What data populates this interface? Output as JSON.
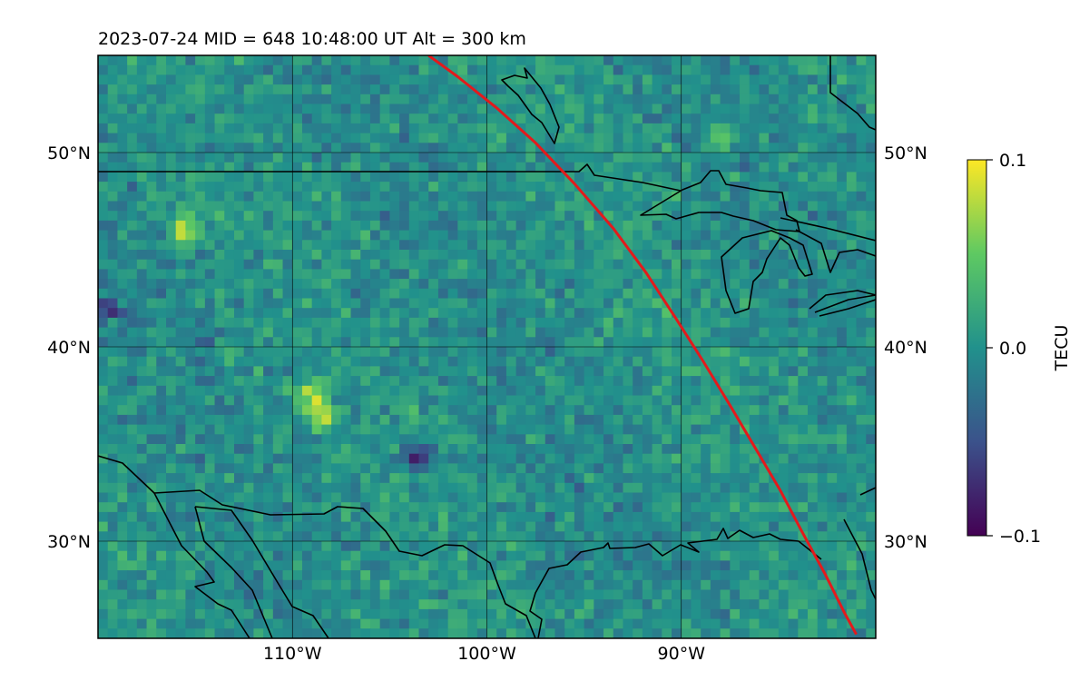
{
  "chart_data": {
    "type": "heatmap",
    "title": "2023-07-24  MID = 648    10:48:00  UT  Alt = 300 km",
    "projection": "plate-carree",
    "extent": {
      "lon": [
        -120,
        -80
      ],
      "lat": [
        25,
        55
      ]
    },
    "x_ticks": [
      {
        "value": -110,
        "label": "110°W"
      },
      {
        "value": -100,
        "label": "100°W"
      },
      {
        "value": -90,
        "label": "90°W"
      }
    ],
    "y_ticks": [
      {
        "value": 30,
        "label": "30°N"
      },
      {
        "value": 40,
        "label": "40°N"
      },
      {
        "value": 50,
        "label": "50°N"
      }
    ],
    "grid": true,
    "colormap": "viridis",
    "colormap_stops": [
      "#440154",
      "#3b528b",
      "#21918c",
      "#5ec962",
      "#fde725"
    ],
    "colorbar": {
      "label": "TECU",
      "range": [
        -0.1,
        0.1
      ],
      "ticks": [
        {
          "value": 0.1,
          "label": "0.1"
        },
        {
          "value": 0.0,
          "label": "0.0"
        },
        {
          "value": -0.1,
          "label": "−0.1"
        }
      ]
    },
    "field": {
      "description_level": "dTEC anomaly, mostly near 0 with speckled noise",
      "mean": 0.0,
      "noise_amplitude": 0.03,
      "hotspots": [
        {
          "lon": -115.5,
          "lat": 46.0,
          "value": 0.09
        },
        {
          "lon": -113.5,
          "lat": 40.0,
          "value": 0.05
        },
        {
          "lon": -109.0,
          "lat": 37.5,
          "value": 0.07
        },
        {
          "lon": -108.5,
          "lat": 36.5,
          "value": 0.06
        },
        {
          "lon": -87.9,
          "lat": 51.0,
          "value": 0.05
        },
        {
          "lon": -103.5,
          "lat": 34.4,
          "value": -0.08
        },
        {
          "lon": -119.5,
          "lat": 42.0,
          "value": -0.07
        },
        {
          "lon": -114.0,
          "lat": 40.0,
          "value": -0.05
        }
      ]
    },
    "satellite_track": {
      "color": "#e31a1c",
      "points": [
        [
          -103.0,
          55.0
        ],
        [
          -101.5,
          53.9
        ],
        [
          -99.5,
          52.3
        ],
        [
          -97.5,
          50.5
        ],
        [
          -95.5,
          48.4
        ],
        [
          -93.5,
          46.1
        ],
        [
          -91.8,
          43.8
        ],
        [
          -90.3,
          41.5
        ],
        [
          -88.9,
          39.3
        ],
        [
          -87.5,
          37.0
        ],
        [
          -86.2,
          34.8
        ],
        [
          -84.9,
          32.6
        ],
        [
          -83.8,
          30.5
        ],
        [
          -82.6,
          28.3
        ],
        [
          -81.6,
          26.3
        ],
        [
          -81.0,
          25.2
        ]
      ]
    }
  }
}
